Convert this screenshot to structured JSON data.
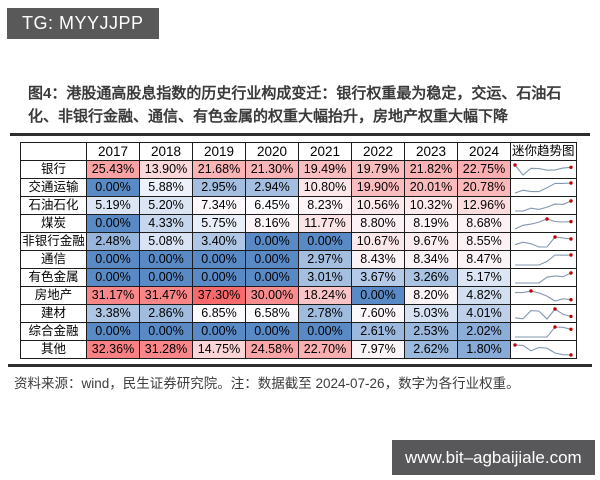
{
  "badges": {
    "tg": "TG: MYYJJPP",
    "site": "www.bit–agbaijiale.com"
  },
  "title": "图4：港股通高股息指数的历史行业构成变迁：银行权重最为稳定，交运、石油石化、非银行金融、通信、有色金属的权重大幅抬升，房地产权重大幅下降",
  "source_note": "资料来源：wind，民生证券研究院。注：数据截至 2024-07-26，数字为各行业权重。",
  "chart_data": {
    "type": "table",
    "title": "图4：港股通高股息指数的历史行业构成变迁：银行权重最为稳定，交运、石油石化、非银行金融、通信、有色金属的权重大幅抬升，房地产权重大幅下降",
    "columns": [
      "",
      "2017",
      "2018",
      "2019",
      "2020",
      "2021",
      "2022",
      "2023",
      "2024",
      "迷你趋势图"
    ],
    "unit": "%",
    "value_suffix": "%",
    "rows": [
      {
        "label": "银行",
        "values": [
          25.43,
          13.9,
          21.68,
          21.3,
          19.49,
          19.79,
          21.82,
          22.75
        ]
      },
      {
        "label": "交通运输",
        "values": [
          0.0,
          5.88,
          2.95,
          2.94,
          10.8,
          19.9,
          20.01,
          20.78
        ]
      },
      {
        "label": "石油石化",
        "values": [
          5.19,
          5.2,
          7.34,
          6.45,
          8.23,
          10.56,
          10.32,
          12.96
        ]
      },
      {
        "label": "煤炭",
        "values": [
          0.0,
          4.33,
          5.75,
          8.16,
          11.77,
          8.8,
          8.19,
          8.68
        ]
      },
      {
        "label": "非银行金融",
        "values": [
          2.48,
          5.08,
          3.4,
          0.0,
          0.0,
          10.67,
          9.67,
          8.55
        ]
      },
      {
        "label": "通信",
        "values": [
          0.0,
          0.0,
          0.0,
          0.0,
          2.97,
          8.43,
          8.34,
          8.47
        ]
      },
      {
        "label": "有色金属",
        "values": [
          0.0,
          0.0,
          0.0,
          0.0,
          3.01,
          3.67,
          3.26,
          5.17
        ]
      },
      {
        "label": "房地产",
        "values": [
          31.17,
          31.47,
          37.3,
          30.0,
          18.24,
          0.0,
          8.2,
          4.82
        ]
      },
      {
        "label": "建材",
        "values": [
          3.38,
          2.86,
          6.85,
          6.58,
          2.78,
          7.6,
          5.03,
          4.01
        ]
      },
      {
        "label": "综合金融",
        "values": [
          0.0,
          0.0,
          0.0,
          0.0,
          0.0,
          2.61,
          2.53,
          2.02
        ]
      },
      {
        "label": "其他",
        "values": [
          32.36,
          31.28,
          14.75,
          24.58,
          22.7,
          7.97,
          2.62,
          1.8
        ]
      }
    ],
    "heatmap": {
      "style": "3-color-scale",
      "min": 0,
      "mid": 6.5,
      "max": 37.3,
      "min_color": "#5A8AC6",
      "mid_color": "#FCFCFF",
      "max_color": "#F8696B"
    },
    "sparkline": {
      "stroke": "#8497B0",
      "marker_color": "#C00000",
      "markers": [
        "high",
        "last"
      ]
    }
  }
}
